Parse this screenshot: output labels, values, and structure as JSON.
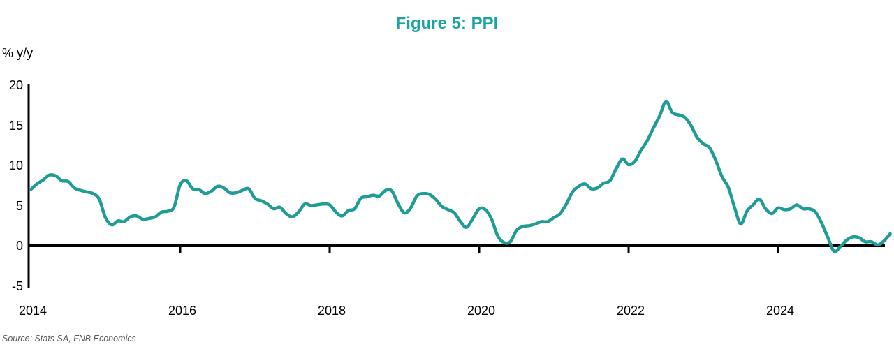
{
  "title": "Figure 5: PPI",
  "y_axis_unit_label": "% y/y",
  "source": "Source: Stats SA, FNB Economics",
  "colors": {
    "title": "#1BA3A0",
    "line": "#1E9C95",
    "axis": "#000000",
    "source_text": "#595959"
  },
  "chart_data": {
    "type": "line",
    "title": "Figure 5: PPI",
    "ylabel": "% y/y",
    "series_name": "PPI",
    "frequency": "monthly",
    "x_start": "2014-01",
    "x_end": "2025-07",
    "ylim": [
      -5,
      20
    ],
    "grid": false,
    "legend": "none",
    "y_ticks": [
      20,
      15,
      10,
      5,
      0,
      -5
    ],
    "x_tick_labels": [
      "2014",
      "2016",
      "2018",
      "2020",
      "2022",
      "2024"
    ],
    "x_tick_month_index": [
      0,
      24,
      48,
      72,
      96,
      120
    ],
    "values": [
      7.0,
      7.7,
      8.2,
      8.8,
      8.7,
      8.1,
      8.0,
      7.2,
      6.9,
      6.7,
      6.5,
      5.8,
      3.5,
      2.6,
      3.1,
      3.0,
      3.6,
      3.7,
      3.3,
      3.4,
      3.6,
      4.2,
      4.3,
      4.8,
      7.6,
      8.1,
      7.1,
      7.0,
      6.5,
      6.8,
      7.4,
      7.2,
      6.6,
      6.6,
      6.9,
      7.1,
      5.9,
      5.6,
      5.2,
      4.6,
      4.8,
      4.0,
      3.6,
      4.2,
      5.2,
      5.0,
      5.1,
      5.2,
      5.1,
      4.2,
      3.7,
      4.4,
      4.6,
      5.9,
      6.1,
      6.3,
      6.2,
      6.9,
      6.8,
      5.2,
      4.1,
      4.7,
      6.2,
      6.5,
      6.4,
      5.8,
      4.9,
      4.5,
      4.1,
      3.0,
      2.3,
      3.4,
      4.6,
      4.5,
      3.3,
      1.2,
      0.4,
      0.5,
      1.9,
      2.4,
      2.5,
      2.7,
      3.0,
      3.0,
      3.5,
      4.0,
      5.2,
      6.7,
      7.4,
      7.7,
      7.1,
      7.2,
      7.8,
      8.1,
      9.6,
      10.8,
      10.1,
      10.5,
      11.9,
      13.1,
      14.7,
      16.2,
      18.0,
      16.6,
      16.3,
      16.0,
      15.0,
      13.5,
      12.7,
      12.2,
      10.6,
      8.6,
      7.3,
      4.8,
      2.7,
      4.3,
      5.1,
      5.8,
      4.6,
      4.0,
      4.7,
      4.5,
      4.6,
      5.1,
      4.6,
      4.6,
      4.2,
      2.8,
      1.0,
      -0.7,
      -0.1,
      0.7,
      1.1,
      1.0,
      0.5,
      0.5,
      0.1,
      0.6,
      1.5
    ]
  }
}
